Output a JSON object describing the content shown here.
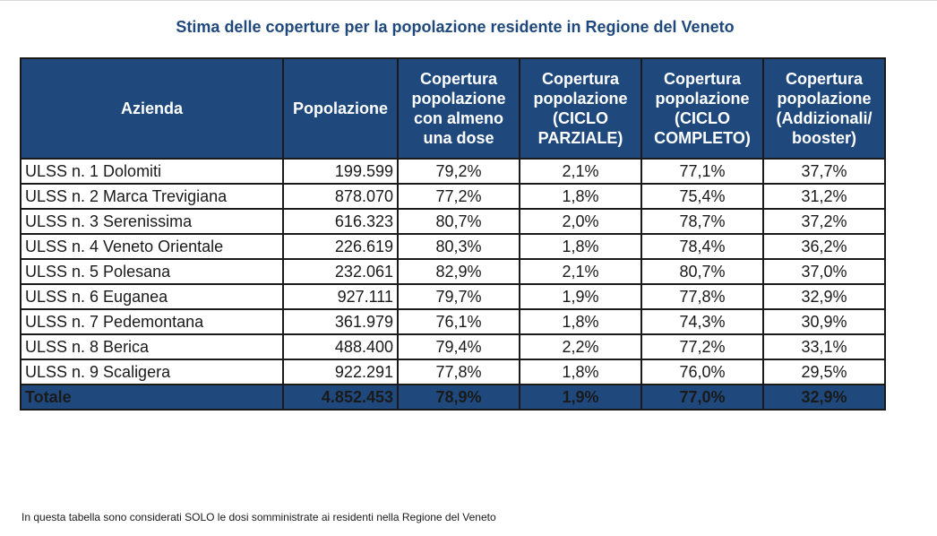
{
  "title": "Stima delle coperture per la popolazione residente in Regione del Veneto",
  "headers": [
    "Azienda",
    "Popolazione",
    "Copertura popolazione con almeno una dose",
    "Copertura popolazione (CICLO PARZIALE)",
    "Copertura popolazione (CICLO COMPLETO)",
    "Copertura popolazione (Addizionali/ booster)"
  ],
  "rows": [
    {
      "azienda": "ULSS n. 1 Dolomiti",
      "popolazione": "199.599",
      "almeno_una_dose": "79,2%",
      "ciclo_parziale": "2,1%",
      "ciclo_completo": "77,1%",
      "booster": "37,7%"
    },
    {
      "azienda": "ULSS n. 2 Marca Trevigiana",
      "popolazione": "878.070",
      "almeno_una_dose": "77,2%",
      "ciclo_parziale": "1,8%",
      "ciclo_completo": "75,4%",
      "booster": "31,2%"
    },
    {
      "azienda": "ULSS n. 3 Serenissima",
      "popolazione": "616.323",
      "almeno_una_dose": "80,7%",
      "ciclo_parziale": "2,0%",
      "ciclo_completo": "78,7%",
      "booster": "37,2%"
    },
    {
      "azienda": "ULSS n. 4 Veneto Orientale",
      "popolazione": "226.619",
      "almeno_una_dose": "80,3%",
      "ciclo_parziale": "1,8%",
      "ciclo_completo": "78,4%",
      "booster": "36,2%"
    },
    {
      "azienda": "ULSS n. 5 Polesana",
      "popolazione": "232.061",
      "almeno_una_dose": "82,9%",
      "ciclo_parziale": "2,1%",
      "ciclo_completo": "80,7%",
      "booster": "37,0%"
    },
    {
      "azienda": "ULSS n. 6 Euganea",
      "popolazione": "927.111",
      "almeno_una_dose": "79,7%",
      "ciclo_parziale": "1,9%",
      "ciclo_completo": "77,8%",
      "booster": "32,9%"
    },
    {
      "azienda": "ULSS n. 7 Pedemontana",
      "popolazione": "361.979",
      "almeno_una_dose": "76,1%",
      "ciclo_parziale": "1,8%",
      "ciclo_completo": "74,3%",
      "booster": "30,9%"
    },
    {
      "azienda": "ULSS n. 8 Berica",
      "popolazione": "488.400",
      "almeno_una_dose": "79,4%",
      "ciclo_parziale": "2,2%",
      "ciclo_completo": "77,2%",
      "booster": "33,1%"
    },
    {
      "azienda": "ULSS n. 9 Scaligera",
      "popolazione": "922.291",
      "almeno_una_dose": "77,8%",
      "ciclo_parziale": "1,8%",
      "ciclo_completo": "76,0%",
      "booster": "29,5%"
    }
  ],
  "total": {
    "azienda": "Totale",
    "popolazione": "4.852.453",
    "almeno_una_dose": "78,9%",
    "ciclo_parziale": "1,9%",
    "ciclo_completo": "77,0%",
    "booster": "32,9%"
  },
  "footnote": "In questa tabella sono considerati SOLO le dosi somministrate ai residenti nella Regione del Veneto",
  "colors": {
    "header_bg": "#1f497d",
    "title_color": "#1f497d",
    "border": "#1a1a1a"
  }
}
